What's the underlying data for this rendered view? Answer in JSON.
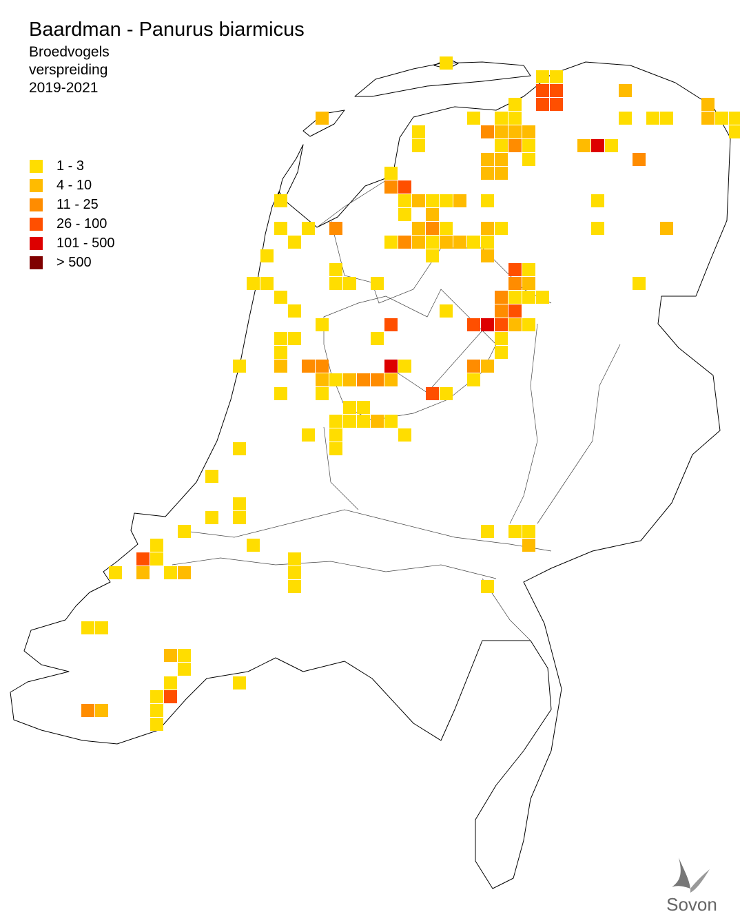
{
  "header": {
    "title": "Baardman - Panurus biarmicus",
    "subtitle": [
      "Broedvogels",
      "verspreiding",
      "2019-2021"
    ]
  },
  "legend": [
    {
      "label": "1 - 3",
      "color": "#ffdd00"
    },
    {
      "label": "4 - 10",
      "color": "#ffbb00"
    },
    {
      "label": "11 - 25",
      "color": "#ff8c00"
    },
    {
      "label": "26 - 100",
      "color": "#ff4f00"
    },
    {
      "label": "101 - 500",
      "color": "#dd0000"
    },
    {
      "label": "> 500",
      "color": "#7f0000"
    }
  ],
  "logo": {
    "text": "Sovon"
  }
}
